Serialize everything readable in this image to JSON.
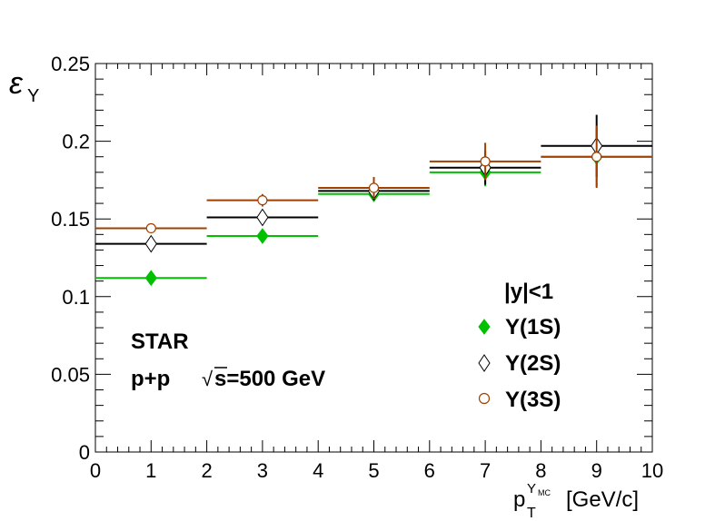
{
  "chart_data": {
    "type": "scatter",
    "xlabel": "p_T^{Υ^{MC}} [GeV/c]",
    "ylabel": "ε_Υ",
    "xlim": [
      0,
      10
    ],
    "ylim": [
      0,
      0.25
    ],
    "x_ticks": [
      "0",
      "1",
      "2",
      "3",
      "4",
      "5",
      "6",
      "7",
      "8",
      "9",
      "10"
    ],
    "y_ticks": [
      "0",
      "0.05",
      "0.1",
      "0.15",
      "0.2",
      "0.25"
    ],
    "grid": false,
    "legend_placement": "bottom-right",
    "legend_header": "|y|<1",
    "annotations": {
      "experiment": "STAR",
      "system": "p+p",
      "energy": "√s=500 GeV"
    },
    "series": [
      {
        "name": "Υ(1S)",
        "color": "#00c000",
        "marker": "filled-diamond",
        "x": [
          1,
          3,
          5,
          7,
          9
        ],
        "xerr": [
          1,
          1,
          1,
          1,
          1
        ],
        "y": [
          0.112,
          0.139,
          0.166,
          0.18,
          0.19
        ],
        "yerr": [
          0.0025,
          0.003,
          0.005,
          0.009,
          0.019
        ]
      },
      {
        "name": "Υ(2S)",
        "color": "#000000",
        "marker": "open-diamond",
        "x": [
          1,
          3,
          5,
          7,
          9
        ],
        "xerr": [
          1,
          1,
          1,
          1,
          1
        ],
        "y": [
          0.134,
          0.151,
          0.168,
          0.183,
          0.197
        ],
        "yerr": [
          0.003,
          0.004,
          0.006,
          0.011,
          0.02
        ]
      },
      {
        "name": "Υ(3S)",
        "color": "#a04000",
        "marker": "open-circle",
        "x": [
          1,
          3,
          5,
          7,
          9
        ],
        "xerr": [
          1,
          1,
          1,
          1,
          1
        ],
        "y": [
          0.144,
          0.162,
          0.17,
          0.187,
          0.19
        ],
        "yerr": [
          0.003,
          0.004,
          0.007,
          0.012,
          0.02
        ]
      }
    ]
  },
  "labels": {
    "ylabel_main": "ε",
    "ylabel_sub": "Υ",
    "xlabel_p": "p",
    "xlabel_T": "T",
    "xlabel_sup": "Υ",
    "xlabel_supsup": "MC",
    "xlabel_unit": "[GeV/c]",
    "legend_header": "|y|<1",
    "legend_1": "Υ(1S)",
    "legend_2": "Υ(2S)",
    "legend_3": "Υ(3S)",
    "star": "STAR",
    "system": "p+p",
    "sqrt": "√",
    "energy": "s=500 GeV"
  }
}
